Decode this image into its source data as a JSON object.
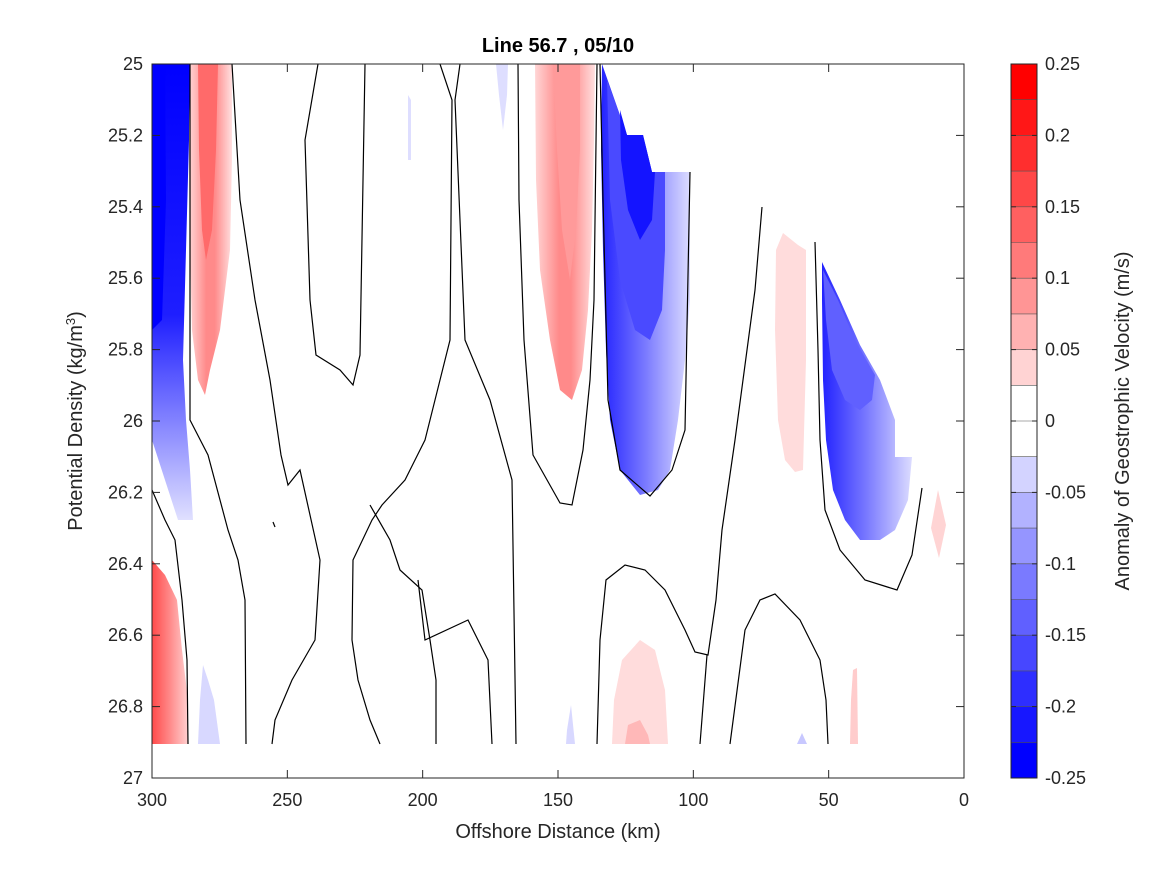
{
  "chart_data": {
    "type": "heatmap",
    "subtype": "filled-contour",
    "title": "Line 56.7 , 05/10",
    "xlabel": "Offshore Distance (km)",
    "ylabel_main": "Potential Density (kg/m",
    "ylabel_sup": "3",
    "ylabel_end": ")",
    "x_axis": {
      "range": [
        300,
        0
      ],
      "reversed": true,
      "ticks": [
        300,
        250,
        200,
        150,
        100,
        50,
        0
      ]
    },
    "y_axis": {
      "range": [
        25,
        27
      ],
      "reversed": true,
      "ticks": [
        "25",
        "25.2",
        "25.4",
        "25.6",
        "25.8",
        "26",
        "26.2",
        "26.4",
        "26.6",
        "26.8",
        "27"
      ]
    },
    "colorbar": {
      "label": "Anomaly of Geostrophic Velocity (m/s)",
      "range": [
        -0.25,
        0.25
      ],
      "step": 0.025,
      "ticks": [
        "0.25",
        "0.2",
        "0.15",
        "0.1",
        "0.05",
        "0",
        "-0.05",
        "-0.1",
        "-0.15",
        "-0.2",
        "-0.25"
      ],
      "low_color": "#0000ff",
      "mid_color": "#ffffff",
      "high_color": "#ff0000"
    },
    "anomaly_features": [
      {
        "kind": "negative",
        "x": [
          300,
          292
        ],
        "y": [
          25.0,
          25.55
        ],
        "value": -0.25
      },
      {
        "kind": "negative",
        "x": [
          300,
          290
        ],
        "y": [
          25.55,
          26.2
        ],
        "value": -0.1
      },
      {
        "kind": "positive",
        "x": [
          285,
          268
        ],
        "y": [
          25.0,
          25.9
        ],
        "value": 0.1
      },
      {
        "kind": "positive",
        "x": [
          300,
          290
        ],
        "y": [
          26.35,
          26.9
        ],
        "value": 0.15
      },
      {
        "kind": "positive",
        "x": [
          160,
          137
        ],
        "y": [
          25.0,
          25.9
        ],
        "value": 0.075
      },
      {
        "kind": "negative",
        "x": [
          135,
          100
        ],
        "y": [
          25.2,
          26.2
        ],
        "value": -0.15
      },
      {
        "kind": "positive",
        "x": [
          70,
          58
        ],
        "y": [
          25.45,
          26.15
        ],
        "value": 0.025
      },
      {
        "kind": "negative",
        "x": [
          52,
          22
        ],
        "y": [
          25.5,
          26.35
        ],
        "value": -0.1
      },
      {
        "kind": "positive",
        "x": [
          125,
          108
        ],
        "y": [
          26.6,
          26.9
        ],
        "value": 0.05
      },
      {
        "kind": "positive",
        "x": [
          12,
          7
        ],
        "y": [
          26.2,
          26.4
        ],
        "value": 0.025
      }
    ]
  }
}
